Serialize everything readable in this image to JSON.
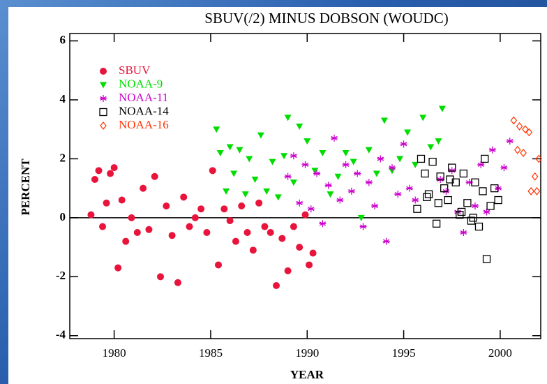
{
  "chart_data": {
    "type": "scatter",
    "title": "SBUV(/2) MINUS DOBSON (WOUDC)",
    "xlabel": "YEAR",
    "ylabel": "PERCENT",
    "xlim": [
      1977.7,
      2002.1
    ],
    "ylim": [
      -4.1,
      6.25
    ],
    "xticks": [
      1980,
      1985,
      1990,
      1995,
      2000
    ],
    "yticks": [
      -4,
      -2,
      0,
      2,
      4,
      6
    ],
    "reference_line": 0,
    "legend": "upper left",
    "series": [
      {
        "name": "SBUV",
        "color": "#e8143c",
        "marker": "circle",
        "x": [
          1978.8,
          1979.0,
          1979.2,
          1979.4,
          1979.6,
          1979.8,
          1980.0,
          1980.2,
          1980.4,
          1980.6,
          1980.9,
          1981.2,
          1981.5,
          1981.8,
          1982.1,
          1982.4,
          1982.7,
          1983.0,
          1983.3,
          1983.6,
          1983.9,
          1984.2,
          1984.5,
          1984.8,
          1985.1,
          1985.4,
          1985.7,
          1986.0,
          1986.3,
          1986.6,
          1986.9,
          1987.2,
          1987.5,
          1987.8,
          1988.1,
          1988.4,
          1988.7,
          1989.0,
          1989.3,
          1989.6,
          1989.9,
          1990.1,
          1990.3
        ],
        "values": [
          0.1,
          1.3,
          1.6,
          -0.3,
          0.5,
          1.5,
          1.7,
          -1.7,
          0.6,
          -0.8,
          0.0,
          -0.5,
          1.0,
          -0.4,
          1.4,
          -2.0,
          0.4,
          -0.6,
          -2.2,
          0.7,
          -0.3,
          0.0,
          0.3,
          -0.5,
          1.6,
          -1.6,
          0.3,
          -0.1,
          -0.8,
          0.4,
          -0.5,
          -1.1,
          0.5,
          -0.3,
          -0.5,
          -2.3,
          -0.7,
          -1.8,
          -0.3,
          -1.0,
          0.1,
          -1.6,
          -1.2
        ]
      },
      {
        "name": "NOAA-9",
        "color": "#00dd00",
        "marker": "triangle-down",
        "x": [
          1985.3,
          1985.5,
          1985.8,
          1986.0,
          1986.2,
          1986.5,
          1986.8,
          1987.0,
          1987.3,
          1987.6,
          1987.9,
          1988.2,
          1988.5,
          1988.8,
          1989.0,
          1989.3,
          1989.6,
          1990.0,
          1990.4,
          1990.8,
          1991.2,
          1991.6,
          1992.0,
          1992.4,
          1992.8,
          1993.2,
          1993.6,
          1994.0,
          1994.4,
          1994.8,
          1995.2,
          1995.6,
          1996.0,
          1996.4,
          1996.8,
          1997.0
        ],
        "values": [
          3.0,
          2.2,
          0.9,
          2.4,
          1.5,
          2.3,
          0.8,
          2.0,
          1.3,
          2.8,
          0.9,
          1.9,
          0.7,
          2.1,
          3.4,
          1.2,
          3.1,
          2.6,
          1.6,
          2.2,
          0.8,
          1.4,
          2.2,
          1.9,
          0.0,
          2.3,
          1.5,
          3.3,
          1.6,
          2.0,
          2.9,
          1.8,
          3.4,
          2.4,
          2.6,
          3.7
        ]
      },
      {
        "name": "NOAA-11",
        "color": "#cc00cc",
        "marker": "asterisk",
        "x": [
          1989.0,
          1989.3,
          1989.6,
          1989.9,
          1990.2,
          1990.5,
          1990.8,
          1991.1,
          1991.4,
          1991.7,
          1992.0,
          1992.3,
          1992.6,
          1992.9,
          1993.2,
          1993.5,
          1993.8,
          1994.1,
          1994.4,
          1994.7,
          1995.0,
          1995.3,
          1995.6,
          1996.9,
          1997.2,
          1997.5,
          1997.8,
          1998.1,
          1998.4,
          1998.7,
          1999.0,
          1999.3,
          1999.6,
          1999.9,
          2000.2,
          2000.5
        ],
        "values": [
          1.4,
          2.1,
          0.5,
          1.8,
          0.3,
          1.5,
          -0.2,
          1.1,
          2.7,
          0.6,
          1.8,
          0.9,
          1.5,
          -0.3,
          1.2,
          0.4,
          2.0,
          -0.8,
          1.7,
          0.8,
          2.5,
          1.0,
          0.6,
          1.3,
          0.9,
          1.6,
          0.2,
          -0.5,
          1.2,
          0.4,
          1.8,
          0.2,
          2.3,
          1.0,
          1.7,
          2.6
        ]
      },
      {
        "name": "NOAA-14",
        "color": "#000000",
        "marker": "square",
        "x": [
          1995.7,
          1995.9,
          1996.1,
          1996.3,
          1996.5,
          1996.7,
          1996.9,
          1997.1,
          1997.3,
          1997.5,
          1997.7,
          1997.9,
          1998.1,
          1998.3,
          1998.5,
          1998.7,
          1998.9,
          1999.1,
          1999.3,
          1999.5,
          1999.7,
          1999.9,
          1996.2,
          1996.8,
          1997.4,
          1998.0,
          1998.6,
          1999.2
        ],
        "values": [
          0.3,
          2.0,
          1.5,
          0.8,
          1.9,
          -0.2,
          1.4,
          1.0,
          0.6,
          1.7,
          1.2,
          0.1,
          1.5,
          0.5,
          -0.1,
          1.2,
          -0.3,
          0.9,
          -1.4,
          0.4,
          1.0,
          0.6,
          0.7,
          0.5,
          1.3,
          0.2,
          0.0,
          2.0
        ]
      },
      {
        "name": "NOAA-16",
        "color": "#ff3300",
        "marker": "diamond",
        "x": [
          2000.7,
          2000.9,
          2001.0,
          2001.2,
          2001.3,
          2001.5,
          2001.6,
          2001.8,
          2001.9,
          2002.0
        ],
        "values": [
          3.3,
          2.3,
          3.1,
          2.2,
          3.0,
          2.9,
          0.9,
          1.4,
          0.9,
          2.0
        ]
      }
    ]
  }
}
